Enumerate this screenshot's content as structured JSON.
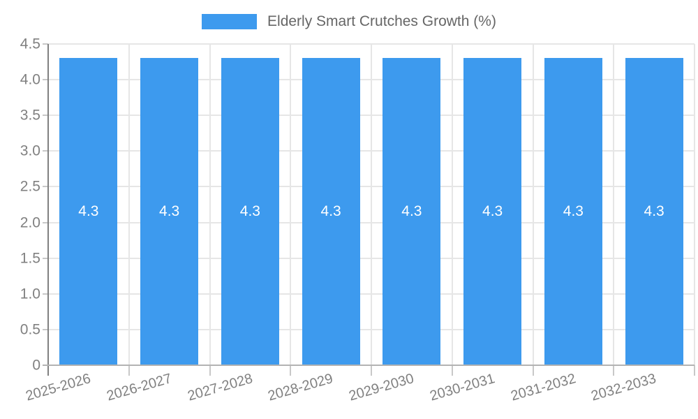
{
  "chart_data": {
    "type": "bar",
    "title": "Elderly Smart Crutches Growth (%)",
    "legend": {
      "label": "Elderly Smart Crutches Growth (%)",
      "position": "top-center"
    },
    "categories": [
      "2025-2026",
      "2026-2027",
      "2027-2028",
      "2028-2029",
      "2029-2030",
      "2030-2031",
      "2031-2032",
      "2032-2033"
    ],
    "series": [
      {
        "name": "Elderly Smart Crutches Growth (%)",
        "values": [
          4.3,
          4.3,
          4.3,
          4.3,
          4.3,
          4.3,
          4.3,
          4.3
        ]
      }
    ],
    "value_labels": [
      "4.3",
      "4.3",
      "4.3",
      "4.3",
      "4.3",
      "4.3",
      "4.3",
      "4.3"
    ],
    "xlabel": "",
    "ylabel": "",
    "ylim": [
      0,
      4.5
    ],
    "yticks": [
      "0",
      "0.5",
      "1.0",
      "1.5",
      "2.0",
      "2.5",
      "3.0",
      "3.5",
      "4.0",
      "4.5"
    ],
    "grid": true,
    "colors": {
      "bar": "#3d9aee",
      "value_label": "#ffffff",
      "gridline": "#e6e6e6",
      "axis_line": "#808080",
      "tick_label": "#808080",
      "legend_text": "#666666"
    }
  }
}
